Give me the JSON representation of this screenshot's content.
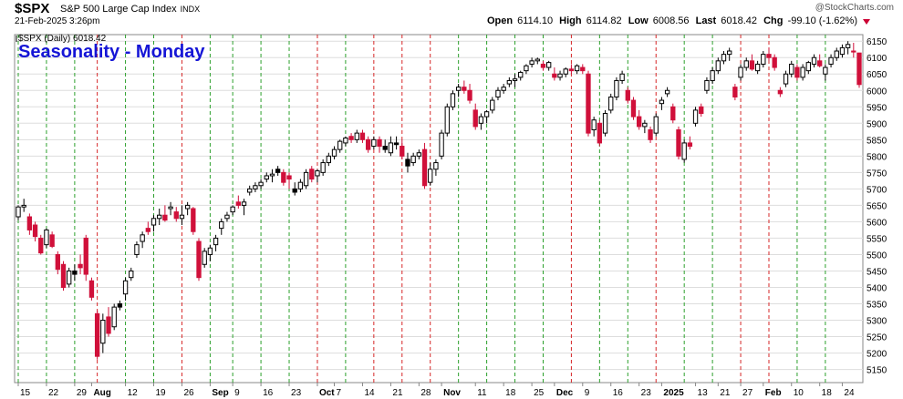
{
  "header": {
    "symbol": "$SPX",
    "security_name": "S&P 500 Large Cap Index",
    "exchange": "INDX",
    "date": "21-Feb-2025 3:26pm",
    "watermark": "@StockCharts.com",
    "quote": {
      "open_label": "Open",
      "open": "6114.10",
      "high_label": "High",
      "high": "6114.82",
      "low_label": "Low",
      "low": "6008.56",
      "last_label": "Last",
      "last": "6018.42",
      "chg_label": "Chg",
      "chg": "-99.10 (-1.62%)"
    }
  },
  "legend_label": "$SPX (Daily) 6018.42",
  "chart_title": "Seasonality - Monday",
  "colors": {
    "up": "#000000",
    "down": "#d0103a",
    "green_line": "#2ca02c",
    "red_line": "#d62728",
    "grid": "#dddddd",
    "title": "#1515d6"
  },
  "chart_data": {
    "type": "candlestick",
    "title": "Seasonality - Monday",
    "ylim": [
      5110,
      6170
    ],
    "y_ticks": [
      5150,
      5200,
      5250,
      5300,
      5350,
      5400,
      5450,
      5500,
      5550,
      5600,
      5650,
      5700,
      5750,
      5800,
      5850,
      5900,
      5950,
      6000,
      6050,
      6100,
      6150
    ],
    "x_tick_labels": [
      {
        "i": 0,
        "label": "15",
        "bold": false
      },
      {
        "i": 5,
        "label": "22",
        "bold": false
      },
      {
        "i": 10,
        "label": "29",
        "bold": false
      },
      {
        "i": 13,
        "label": "Aug",
        "bold": true
      },
      {
        "i": 19,
        "label": "12",
        "bold": false
      },
      {
        "i": 24,
        "label": "19",
        "bold": false
      },
      {
        "i": 29,
        "label": "26",
        "bold": false
      },
      {
        "i": 34,
        "label": "Sep",
        "bold": true
      },
      {
        "i": 38,
        "label": "9",
        "bold": false
      },
      {
        "i": 43,
        "label": "16",
        "bold": false
      },
      {
        "i": 48,
        "label": "23",
        "bold": false
      },
      {
        "i": 53,
        "label": "Oct",
        "bold": true
      },
      {
        "i": 56,
        "label": "7",
        "bold": false
      },
      {
        "i": 61,
        "label": "14",
        "bold": false
      },
      {
        "i": 66,
        "label": "21",
        "bold": false
      },
      {
        "i": 71,
        "label": "28",
        "bold": false
      },
      {
        "i": 75,
        "label": "Nov",
        "bold": true
      },
      {
        "i": 81,
        "label": "11",
        "bold": false
      },
      {
        "i": 86,
        "label": "18",
        "bold": false
      },
      {
        "i": 91,
        "label": "25",
        "bold": false
      },
      {
        "i": 95,
        "label": "Dec",
        "bold": true
      },
      {
        "i": 100,
        "label": "9",
        "bold": false
      },
      {
        "i": 105,
        "label": "16",
        "bold": false
      },
      {
        "i": 110,
        "label": "23",
        "bold": false
      },
      {
        "i": 114,
        "label": "2025",
        "bold": true
      },
      {
        "i": 120,
        "label": "13",
        "bold": false
      },
      {
        "i": 124,
        "label": "21",
        "bold": false
      },
      {
        "i": 128,
        "label": "27",
        "bold": false
      },
      {
        "i": 132,
        "label": "Feb",
        "bold": true
      },
      {
        "i": 137,
        "label": "10",
        "bold": false
      },
      {
        "i": 142,
        "label": "18",
        "bold": false
      },
      {
        "i": 146,
        "label": "24",
        "bold": false
      }
    ],
    "monday_lines": [
      {
        "i": 0,
        "color": "green"
      },
      {
        "i": 5,
        "color": "green"
      },
      {
        "i": 10,
        "color": "green"
      },
      {
        "i": 14,
        "color": "red"
      },
      {
        "i": 19,
        "color": "green"
      },
      {
        "i": 24,
        "color": "green"
      },
      {
        "i": 29,
        "color": "red"
      },
      {
        "i": 34,
        "color": "green"
      },
      {
        "i": 38,
        "color": "green"
      },
      {
        "i": 43,
        "color": "green"
      },
      {
        "i": 48,
        "color": "green"
      },
      {
        "i": 53,
        "color": "red"
      },
      {
        "i": 58,
        "color": "green"
      },
      {
        "i": 63,
        "color": "red"
      },
      {
        "i": 68,
        "color": "red"
      },
      {
        "i": 73,
        "color": "red"
      },
      {
        "i": 78,
        "color": "green"
      },
      {
        "i": 83,
        "color": "green"
      },
      {
        "i": 88,
        "color": "green"
      },
      {
        "i": 93,
        "color": "green"
      },
      {
        "i": 98,
        "color": "red"
      },
      {
        "i": 103,
        "color": "green"
      },
      {
        "i": 108,
        "color": "green"
      },
      {
        "i": 113,
        "color": "red"
      },
      {
        "i": 118,
        "color": "green"
      },
      {
        "i": 123,
        "color": "green"
      },
      {
        "i": 128,
        "color": "red"
      },
      {
        "i": 133,
        "color": "red"
      },
      {
        "i": 138,
        "color": "green"
      },
      {
        "i": 143,
        "color": "green"
      }
    ],
    "candles": [
      [
        5615,
        5650,
        5605,
        5645,
        "up"
      ],
      [
        5645,
        5670,
        5630,
        5650,
        "up"
      ],
      [
        5615,
        5625,
        5560,
        5575,
        "down"
      ],
      [
        5590,
        5600,
        5540,
        5555,
        "down"
      ],
      [
        5550,
        5560,
        5500,
        5505,
        "down"
      ],
      [
        5530,
        5580,
        5520,
        5575,
        "up"
      ],
      [
        5560,
        5570,
        5520,
        5525,
        "down"
      ],
      [
        5500,
        5510,
        5440,
        5455,
        "down"
      ],
      [
        5470,
        5480,
        5390,
        5400,
        "down"
      ],
      [
        5410,
        5460,
        5400,
        5450,
        "up"
      ],
      [
        5450,
        5470,
        5420,
        5440,
        "up"
      ],
      [
        5460,
        5500,
        5440,
        5470,
        "down"
      ],
      [
        5550,
        5560,
        5420,
        5440,
        "down"
      ],
      [
        5420,
        5430,
        5360,
        5370,
        "down"
      ],
      [
        5320,
        5330,
        5180,
        5190,
        "down"
      ],
      [
        5230,
        5320,
        5200,
        5300,
        "up"
      ],
      [
        5310,
        5340,
        5250,
        5260,
        "down"
      ],
      [
        5280,
        5350,
        5270,
        5340,
        "up"
      ],
      [
        5350,
        5360,
        5330,
        5340,
        "up"
      ],
      [
        5380,
        5430,
        5360,
        5420,
        "up"
      ],
      [
        5430,
        5460,
        5420,
        5450,
        "up"
      ],
      [
        5500,
        5540,
        5490,
        5530,
        "up"
      ],
      [
        5540,
        5570,
        5520,
        5560,
        "up"
      ],
      [
        5580,
        5600,
        5560,
        5570,
        "down"
      ],
      [
        5590,
        5620,
        5570,
        5610,
        "up"
      ],
      [
        5610,
        5640,
        5590,
        5620,
        "up"
      ],
      [
        5620,
        5650,
        5600,
        5605,
        "down"
      ],
      [
        5640,
        5660,
        5620,
        5645,
        "up"
      ],
      [
        5630,
        5645,
        5600,
        5610,
        "down"
      ],
      [
        5610,
        5650,
        5590,
        5620,
        "up"
      ],
      [
        5640,
        5660,
        5620,
        5650,
        "up"
      ],
      [
        5640,
        5645,
        5560,
        5570,
        "down"
      ],
      [
        5540,
        5550,
        5420,
        5430,
        "down"
      ],
      [
        5470,
        5520,
        5460,
        5510,
        "up"
      ],
      [
        5500,
        5530,
        5480,
        5520,
        "up"
      ],
      [
        5530,
        5560,
        5510,
        5550,
        "up"
      ],
      [
        5580,
        5610,
        5560,
        5600,
        "up"
      ],
      [
        5610,
        5630,
        5600,
        5620,
        "up"
      ],
      [
        5630,
        5650,
        5620,
        5645,
        "up"
      ],
      [
        5660,
        5680,
        5640,
        5650,
        "down"
      ],
      [
        5650,
        5670,
        5620,
        5660,
        "up"
      ],
      [
        5690,
        5710,
        5680,
        5700,
        "up"
      ],
      [
        5700,
        5720,
        5690,
        5710,
        "up"
      ],
      [
        5710,
        5730,
        5700,
        5720,
        "up"
      ],
      [
        5730,
        5750,
        5720,
        5740,
        "up"
      ],
      [
        5740,
        5760,
        5720,
        5745,
        "up"
      ],
      [
        5760,
        5770,
        5740,
        5750,
        "up"
      ],
      [
        5750,
        5760,
        5710,
        5720,
        "down"
      ],
      [
        5730,
        5750,
        5700,
        5740,
        "down"
      ],
      [
        5700,
        5720,
        5680,
        5690,
        "up"
      ],
      [
        5700,
        5730,
        5690,
        5720,
        "up"
      ],
      [
        5710,
        5760,
        5700,
        5750,
        "up"
      ],
      [
        5760,
        5770,
        5720,
        5730,
        "down"
      ],
      [
        5740,
        5760,
        5720,
        5755,
        "up"
      ],
      [
        5750,
        5790,
        5740,
        5780,
        "up"
      ],
      [
        5780,
        5810,
        5770,
        5800,
        "up"
      ],
      [
        5800,
        5830,
        5790,
        5820,
        "up"
      ],
      [
        5820,
        5850,
        5810,
        5845,
        "up"
      ],
      [
        5840,
        5860,
        5830,
        5855,
        "up"
      ],
      [
        5860,
        5870,
        5840,
        5850,
        "down"
      ],
      [
        5850,
        5880,
        5840,
        5870,
        "up"
      ],
      [
        5870,
        5880,
        5840,
        5850,
        "down"
      ],
      [
        5850,
        5860,
        5810,
        5820,
        "down"
      ],
      [
        5830,
        5860,
        5820,
        5850,
        "up"
      ],
      [
        5850,
        5860,
        5810,
        5830,
        "down"
      ],
      [
        5830,
        5850,
        5810,
        5820,
        "up"
      ],
      [
        5810,
        5860,
        5800,
        5840,
        "up"
      ],
      [
        5840,
        5860,
        5820,
        5835,
        "up"
      ],
      [
        5830,
        5850,
        5790,
        5800,
        "down"
      ],
      [
        5790,
        5810,
        5750,
        5770,
        "up"
      ],
      [
        5780,
        5810,
        5770,
        5800,
        "up"
      ],
      [
        5800,
        5820,
        5790,
        5810,
        "up"
      ],
      [
        5820,
        5840,
        5700,
        5710,
        "down"
      ],
      [
        5720,
        5780,
        5710,
        5760,
        "up"
      ],
      [
        5760,
        5790,
        5740,
        5780,
        "up"
      ],
      [
        5800,
        5880,
        5790,
        5870,
        "up"
      ],
      [
        5870,
        5960,
        5860,
        5950,
        "up"
      ],
      [
        5950,
        6000,
        5940,
        5990,
        "up"
      ],
      [
        6000,
        6020,
        5980,
        6010,
        "up"
      ],
      [
        6010,
        6030,
        5990,
        6000,
        "down"
      ],
      [
        6000,
        6020,
        5960,
        5970,
        "down"
      ],
      [
        5940,
        5960,
        5880,
        5890,
        "down"
      ],
      [
        5900,
        5930,
        5880,
        5920,
        "up"
      ],
      [
        5920,
        5940,
        5900,
        5935,
        "up"
      ],
      [
        5940,
        5980,
        5930,
        5970,
        "up"
      ],
      [
        5980,
        6010,
        5970,
        6000,
        "up"
      ],
      [
        6000,
        6020,
        5990,
        6010,
        "up"
      ],
      [
        6020,
        6040,
        6010,
        6030,
        "up"
      ],
      [
        6030,
        6050,
        6010,
        6035,
        "up"
      ],
      [
        6040,
        6060,
        6030,
        6055,
        "up"
      ],
      [
        6060,
        6080,
        6050,
        6075,
        "up"
      ],
      [
        6080,
        6100,
        6070,
        6090,
        "up"
      ],
      [
        6090,
        6100,
        6080,
        6095,
        "up"
      ],
      [
        6080,
        6090,
        6060,
        6070,
        "down"
      ],
      [
        6070,
        6090,
        6060,
        6085,
        "up"
      ],
      [
        6050,
        6070,
        6030,
        6040,
        "down"
      ],
      [
        6040,
        6060,
        6030,
        6050,
        "up"
      ],
      [
        6050,
        6070,
        6040,
        6065,
        "up"
      ],
      [
        6065,
        6080,
        6050,
        6060,
        "down"
      ],
      [
        6060,
        6080,
        6050,
        6075,
        "up"
      ],
      [
        6070,
        6080,
        6050,
        6060,
        "down"
      ],
      [
        6050,
        6060,
        5860,
        5870,
        "down"
      ],
      [
        5880,
        5920,
        5860,
        5910,
        "up"
      ],
      [
        5900,
        5910,
        5830,
        5840,
        "down"
      ],
      [
        5870,
        5940,
        5860,
        5930,
        "up"
      ],
      [
        5940,
        5990,
        5930,
        5980,
        "up"
      ],
      [
        5980,
        6040,
        5970,
        6030,
        "up"
      ],
      [
        6030,
        6060,
        6020,
        6050,
        "up"
      ],
      [
        6000,
        6010,
        5960,
        5970,
        "down"
      ],
      [
        5970,
        5980,
        5910,
        5920,
        "down"
      ],
      [
        5920,
        5940,
        5880,
        5890,
        "down"
      ],
      [
        5890,
        5910,
        5870,
        5900,
        "up"
      ],
      [
        5880,
        5890,
        5840,
        5850,
        "down"
      ],
      [
        5870,
        5930,
        5860,
        5920,
        "up"
      ],
      [
        5960,
        5980,
        5940,
        5970,
        "up"
      ],
      [
        5990,
        6010,
        5980,
        6000,
        "up"
      ],
      [
        5950,
        5960,
        5900,
        5910,
        "down"
      ],
      [
        5880,
        5890,
        5790,
        5800,
        "down"
      ],
      [
        5790,
        5850,
        5780,
        5840,
        "up"
      ],
      [
        5840,
        5860,
        5820,
        5830,
        "down"
      ],
      [
        5900,
        5950,
        5890,
        5940,
        "up"
      ],
      [
        5950,
        5960,
        5920,
        5930,
        "down"
      ],
      [
        6000,
        6040,
        5990,
        6030,
        "up"
      ],
      [
        6030,
        6070,
        6020,
        6060,
        "up"
      ],
      [
        6060,
        6100,
        6050,
        6090,
        "up"
      ],
      [
        6090,
        6120,
        6080,
        6110,
        "up"
      ],
      [
        6110,
        6130,
        6090,
        6120,
        "up"
      ],
      [
        5980,
        6020,
        5970,
        6010,
        "down"
      ],
      [
        6040,
        6080,
        6030,
        6070,
        "up"
      ],
      [
        6070,
        6100,
        6060,
        6090,
        "up"
      ],
      [
        6090,
        6110,
        6060,
        6065,
        "down"
      ],
      [
        6060,
        6090,
        6050,
        6080,
        "up"
      ],
      [
        6080,
        6120,
        6070,
        6110,
        "up"
      ],
      [
        6110,
        6130,
        6090,
        6100,
        "down"
      ],
      [
        6100,
        6110,
        6060,
        6070,
        "down"
      ],
      [
        6000,
        6010,
        5980,
        5990,
        "down"
      ],
      [
        6020,
        6060,
        6010,
        6050,
        "up"
      ],
      [
        6050,
        6090,
        6040,
        6080,
        "up"
      ],
      [
        6070,
        6080,
        6030,
        6040,
        "down"
      ],
      [
        6040,
        6080,
        6030,
        6070,
        "up"
      ],
      [
        6060,
        6090,
        6050,
        6085,
        "up"
      ],
      [
        6080,
        6110,
        6070,
        6100,
        "up"
      ],
      [
        6090,
        6110,
        6070,
        6075,
        "down"
      ],
      [
        6050,
        6080,
        6030,
        6070,
        "up"
      ],
      [
        6080,
        6110,
        6070,
        6100,
        "up"
      ],
      [
        6100,
        6130,
        6090,
        6120,
        "up"
      ],
      [
        6110,
        6140,
        6100,
        6130,
        "up"
      ],
      [
        6130,
        6150,
        6110,
        6140,
        "up"
      ],
      [
        6120,
        6145,
        6100,
        6117,
        "down"
      ],
      [
        6114,
        6115,
        6008,
        6018,
        "down"
      ]
    ]
  }
}
